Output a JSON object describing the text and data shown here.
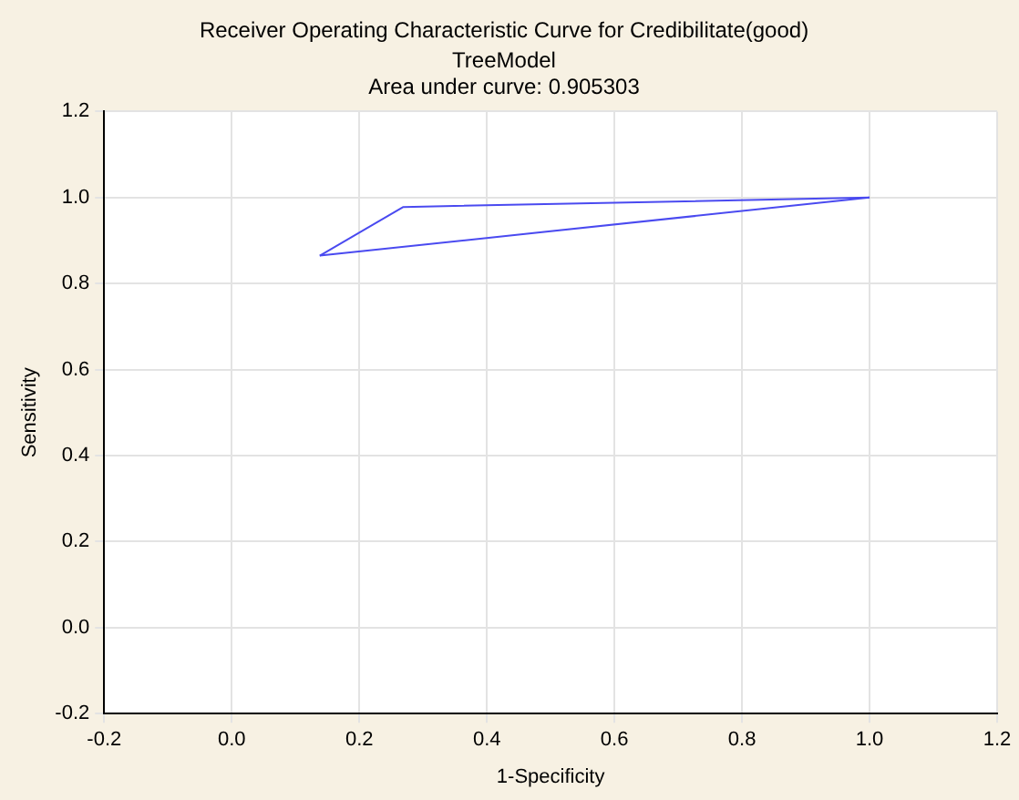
{
  "chart_data": {
    "type": "line",
    "title": "Receiver Operating Characteristic Curve for Credibilitate(good)",
    "subtitle": "TreeModel",
    "annotations": [
      "Area under curve: 0.905303"
    ],
    "xlabel": "1-Specificity",
    "ylabel": "Sensitivity",
    "series": [
      {
        "color": "#4a4af0",
        "x": [
          0.138,
          0.269,
          1.0
        ],
        "values": [
          0.865,
          0.978,
          1.0
        ]
      },
      {
        "color": "#4a4af0",
        "x": [
          0.138,
          1.0
        ],
        "values": [
          0.865,
          1.0
        ]
      }
    ],
    "xlim": [
      -0.2,
      1.2
    ],
    "xticks": [
      -0.2,
      {
        "value": 0,
        "label": "0.0"
      },
      0.2,
      0.4,
      0.6,
      0.8,
      {
        "value": 1,
        "label": "1.0"
      },
      {
        "value": 1.2,
        "label": "1.2"
      }
    ],
    "ylim": [
      -0.2,
      1.2
    ],
    "yticks": [
      -0.2,
      {
        "value": 0,
        "label": "0.0"
      },
      0.2,
      0.4,
      0.6,
      0.8,
      {
        "value": 1,
        "label": "1.0"
      },
      {
        "value": 1.2,
        "label": "1.2"
      }
    ],
    "grid": true,
    "legend": false,
    "marker": "none",
    "line_style": "solid"
  }
}
